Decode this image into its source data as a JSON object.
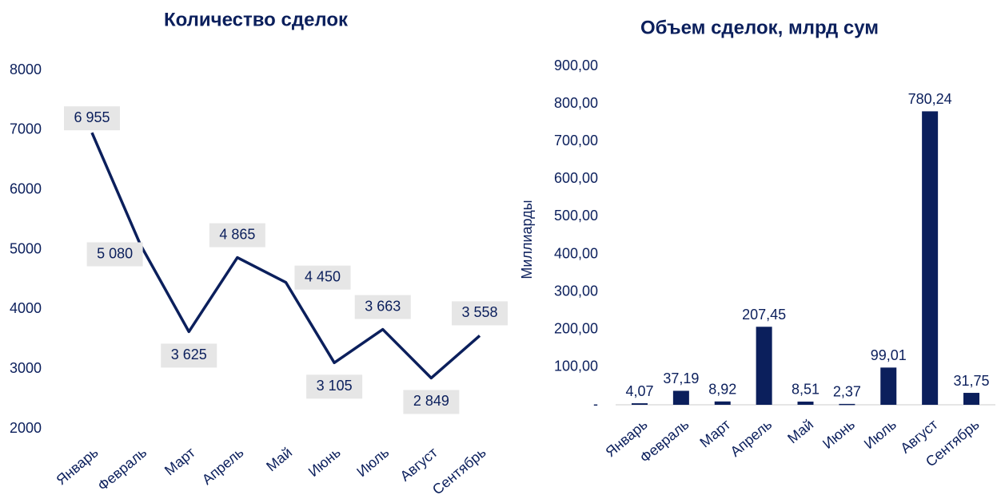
{
  "chart_data": [
    {
      "type": "line",
      "title": "Количество сделок",
      "categories": [
        "Январь",
        "Февраль",
        "Март",
        "Апрель",
        "Май",
        "Июнь",
        "Июль",
        "Август",
        "Сентябрь"
      ],
      "values": [
        6955,
        5080,
        3625,
        4865,
        4450,
        3105,
        3663,
        2849,
        3558
      ],
      "value_labels": [
        "6 955",
        "5 080",
        "3 625",
        "4 865",
        "4 450",
        "3 105",
        "3 663",
        "2 849",
        "3 558"
      ],
      "color": "#0b1f5c",
      "ylim": [
        2000,
        8000
      ],
      "yticks": [
        2000,
        3000,
        4000,
        5000,
        6000,
        7000,
        8000
      ]
    },
    {
      "type": "bar",
      "title": "Объем сделок, млрд сум",
      "ylabel": "Миллиарды",
      "categories": [
        "Январь",
        "Февраль",
        "Март",
        "Апрель",
        "Май",
        "Июнь",
        "Июль",
        "Август",
        "Сентябрь"
      ],
      "values": [
        4.07,
        37.19,
        8.92,
        207.45,
        8.51,
        2.37,
        99.01,
        780.24,
        31.75
      ],
      "value_labels": [
        "4,07",
        "37,19",
        "8,92",
        "207,45",
        "8,51",
        "2,37",
        "99,01",
        "780,24",
        "31,75"
      ],
      "color": "#0b1f5c",
      "ylim": [
        0,
        900
      ],
      "yticks": [
        {
          "value": 0,
          "label": "-"
        },
        {
          "value": 100,
          "label": "100,00"
        },
        {
          "value": 200,
          "label": "200,00"
        },
        {
          "value": 300,
          "label": "300,00"
        },
        {
          "value": 400,
          "label": "400,00"
        },
        {
          "value": 500,
          "label": "500,00"
        },
        {
          "value": 600,
          "label": "600,00"
        },
        {
          "value": 700,
          "label": "700,00"
        },
        {
          "value": 800,
          "label": "800,00"
        },
        {
          "value": 900,
          "label": "900,00"
        }
      ]
    }
  ]
}
